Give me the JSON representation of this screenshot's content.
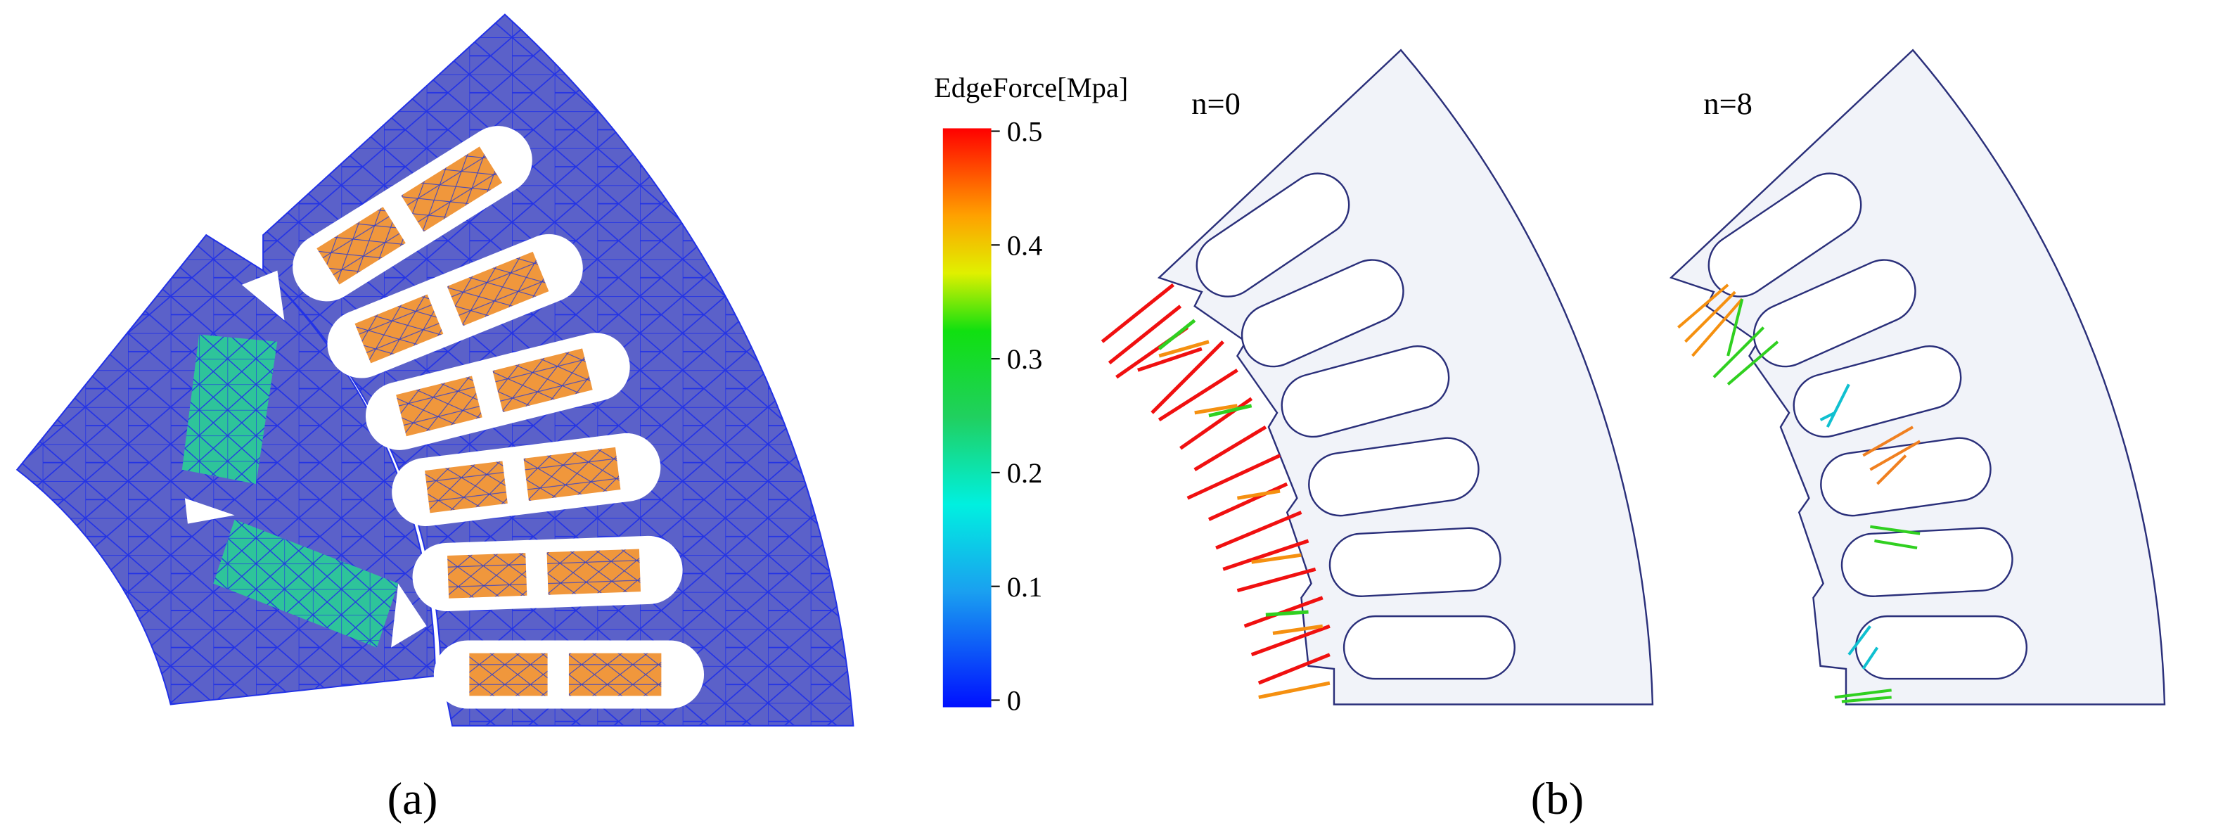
{
  "colorbar": {
    "title": "EdgeForce[Mpa]",
    "ticks": [
      0.5,
      0.4,
      0.3,
      0.2,
      0.1,
      0
    ]
  },
  "panels": {
    "b_left": "n=0",
    "b_right": "n=8"
  },
  "captions": {
    "a": "(a)",
    "b": "(b)"
  }
}
